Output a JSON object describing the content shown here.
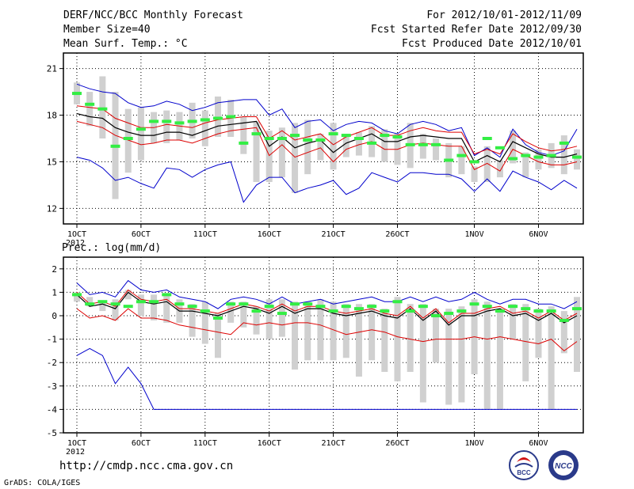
{
  "header": {
    "title": "DERF/NCC/BCC Monthly Forecast",
    "member_size": "Member Size=40",
    "variable": "Mean Surf. Temp.: °C",
    "forecast_period": "For 2012/10/01-2012/11/09",
    "started_date": "Fcst Started Refer Date 2012/09/30",
    "produced_date": "Fcst Produced Date 2012/10/01"
  },
  "footer": {
    "url": "http://cmdp.ncc.cma.gov.cn",
    "grads": "GrADS: COLA/IGES",
    "logo_bcc": "BCC",
    "logo_ncc": "NCC"
  },
  "colors": {
    "box": "#d0d0d0",
    "obs": "#33ee44",
    "mean": "#000000",
    "spread": "#dd0000",
    "extreme": "#0000cc",
    "grid": "#000000"
  },
  "chart_data": [
    {
      "type": "line",
      "title": "Mean Surf. Temp.: °C",
      "days": 40,
      "ylim": [
        11,
        22
      ],
      "yticks": [
        12,
        15,
        18,
        21
      ],
      "xtick_labels": [
        "1OCT\n2012",
        "6OCT",
        "11OCT",
        "16OCT",
        "21OCT",
        "26OCT",
        "1NOV",
        "6NOV"
      ],
      "xtick_days": [
        1,
        6,
        11,
        16,
        21,
        26,
        32,
        37
      ],
      "series": [
        {
          "name": "mean",
          "values": [
            18.1,
            17.9,
            17.8,
            17.2,
            16.9,
            16.7,
            16.7,
            16.9,
            16.9,
            16.7,
            17.0,
            17.3,
            17.4,
            17.5,
            17.6,
            16.0,
            16.6,
            15.9,
            16.2,
            16.4,
            15.6,
            16.2,
            16.5,
            16.8,
            16.3,
            16.3,
            16.6,
            16.7,
            16.6,
            16.5,
            16.5,
            15.0,
            15.4,
            15.0,
            16.3,
            15.9,
            15.5,
            15.3,
            15.3,
            15.5
          ]
        },
        {
          "name": "upper",
          "values": [
            18.6,
            18.5,
            18.4,
            17.8,
            17.5,
            17.2,
            17.2,
            17.4,
            17.3,
            17.2,
            17.5,
            17.7,
            17.8,
            17.9,
            17.9,
            16.5,
            17.0,
            16.4,
            16.6,
            16.8,
            16.1,
            16.6,
            16.9,
            17.2,
            16.7,
            16.7,
            17.0,
            17.2,
            17.0,
            16.9,
            16.9,
            15.5,
            15.8,
            15.5,
            16.8,
            16.3,
            15.9,
            15.7,
            15.8,
            16.0
          ]
        },
        {
          "name": "lower",
          "values": [
            17.6,
            17.4,
            17.2,
            16.7,
            16.4,
            16.1,
            16.2,
            16.4,
            16.4,
            16.2,
            16.5,
            16.8,
            17.0,
            17.1,
            17.2,
            15.4,
            16.1,
            15.3,
            15.6,
            15.9,
            15.0,
            15.8,
            16.1,
            16.3,
            15.8,
            15.8,
            16.1,
            16.2,
            16.1,
            16.0,
            16.0,
            14.5,
            14.9,
            14.4,
            15.8,
            15.4,
            15.0,
            14.8,
            14.8,
            15.0
          ]
        },
        {
          "name": "max",
          "values": [
            20.0,
            19.7,
            19.5,
            19.4,
            18.8,
            18.5,
            18.6,
            18.9,
            18.7,
            18.3,
            18.5,
            18.8,
            18.9,
            19.0,
            19.0,
            18.0,
            18.4,
            17.2,
            17.6,
            17.7,
            17.0,
            17.4,
            17.6,
            17.5,
            17.0,
            16.8,
            17.4,
            17.6,
            17.4,
            17.0,
            17.2,
            15.4,
            15.9,
            15.3,
            17.1,
            16.1,
            15.6,
            15.4,
            15.7,
            17.1
          ]
        },
        {
          "name": "min",
          "values": [
            15.3,
            15.1,
            14.6,
            13.8,
            14.0,
            13.6,
            13.3,
            14.6,
            14.5,
            14.0,
            14.5,
            14.8,
            15.0,
            12.4,
            13.5,
            14.0,
            14.0,
            13.0,
            13.3,
            13.5,
            13.8,
            12.9,
            13.3,
            14.3,
            14.0,
            13.7,
            14.3,
            14.3,
            14.2,
            14.2,
            13.9,
            13.1,
            13.9,
            13.1,
            14.4,
            14.0,
            13.7,
            13.2,
            13.8,
            13.3
          ]
        },
        {
          "name": "obs",
          "values": [
            19.4,
            18.7,
            18.4,
            16.0,
            16.5,
            17.1,
            17.6,
            17.6,
            17.5,
            17.6,
            17.7,
            17.8,
            17.9,
            16.2,
            16.8,
            16.5,
            16.5,
            16.7,
            16.4,
            16.4,
            16.8,
            16.7,
            16.5,
            16.2,
            16.7,
            16.6,
            16.1,
            16.1,
            16.1,
            15.1,
            15.4,
            15.0,
            16.5,
            15.9,
            15.2,
            15.4,
            15.3,
            15.4,
            16.2,
            15.3
          ]
        }
      ],
      "box_low": [
        18.7,
        17.3,
        16.5,
        12.6,
        14.3,
        15.1,
        16.2,
        16.2,
        16.4,
        16.5,
        16.0,
        16.6,
        16.6,
        15.5,
        13.7,
        13.7,
        14.0,
        13.0,
        14.2,
        15.1,
        14.5,
        15.3,
        15.4,
        15.3,
        15.0,
        14.8,
        14.6,
        15.2,
        15.1,
        14.0,
        14.2,
        13.7,
        13.7,
        14.0,
        14.9,
        14.0,
        14.5,
        14.6,
        14.2,
        14.5
      ],
      "box_high": [
        20.1,
        19.5,
        20.5,
        19.5,
        18.4,
        18.5,
        18.2,
        18.3,
        18.2,
        18.8,
        18.3,
        19.2,
        19.0,
        17.9,
        17.6,
        17.0,
        17.2,
        17.5,
        17.7,
        16.8,
        17.5,
        16.8,
        16.9,
        17.3,
        17.1,
        16.8,
        17.5,
        16.8,
        16.5,
        16.2,
        16.0,
        14.7,
        16.0,
        15.1,
        17.0,
        15.6,
        15.8,
        16.2,
        16.7,
        15.8
      ]
    },
    {
      "type": "line",
      "title": "Prec.: log(mm/d)",
      "days": 40,
      "ylim": [
        -5,
        2.5
      ],
      "yticks": [
        -5,
        -4,
        -3,
        -2,
        -1,
        0,
        1,
        2
      ],
      "xtick_labels": [
        "1OCT\n2012",
        "6OCT",
        "11OCT",
        "16OCT",
        "21OCT",
        "26OCT",
        "1NOV",
        "6NOV"
      ],
      "xtick_days": [
        1,
        6,
        11,
        16,
        21,
        26,
        32,
        37
      ],
      "series": [
        {
          "name": "mean",
          "values": [
            0.9,
            0.4,
            0.5,
            0.3,
            1.0,
            0.6,
            0.5,
            0.6,
            0.2,
            0.2,
            0.1,
            0.0,
            0.2,
            0.4,
            0.3,
            0.1,
            0.4,
            0.1,
            0.3,
            0.3,
            0.1,
            0.0,
            0.1,
            0.2,
            0.0,
            -0.1,
            0.3,
            -0.2,
            0.2,
            -0.4,
            0.0,
            0.0,
            0.2,
            0.3,
            0.0,
            0.1,
            -0.2,
            0.1,
            -0.3,
            0.0
          ]
        },
        {
          "name": "upper",
          "values": [
            1.0,
            0.5,
            0.6,
            0.4,
            1.1,
            0.7,
            0.6,
            0.7,
            0.3,
            0.3,
            0.2,
            0.1,
            0.3,
            0.5,
            0.4,
            0.2,
            0.5,
            0.2,
            0.4,
            0.4,
            0.2,
            0.1,
            0.2,
            0.3,
            0.1,
            0.0,
            0.4,
            -0.1,
            0.3,
            -0.3,
            0.1,
            0.1,
            0.3,
            0.4,
            0.1,
            0.2,
            -0.1,
            0.2,
            -0.2,
            0.1
          ]
        },
        {
          "name": "lower",
          "values": [
            0.3,
            -0.1,
            0.0,
            -0.2,
            0.3,
            -0.1,
            -0.1,
            -0.2,
            -0.4,
            -0.5,
            -0.6,
            -0.7,
            -0.8,
            -0.3,
            -0.4,
            -0.3,
            -0.4,
            -0.3,
            -0.3,
            -0.4,
            -0.6,
            -0.8,
            -0.7,
            -0.6,
            -0.7,
            -0.9,
            -1.0,
            -1.1,
            -1.0,
            -1.0,
            -1.0,
            -0.9,
            -1.0,
            -0.9,
            -1.0,
            -1.1,
            -1.2,
            -1.0,
            -1.5,
            -1.1
          ]
        },
        {
          "name": "max",
          "values": [
            1.4,
            0.9,
            1.0,
            0.8,
            1.5,
            1.1,
            1.0,
            1.1,
            0.8,
            0.7,
            0.6,
            0.3,
            0.7,
            0.8,
            0.7,
            0.5,
            0.8,
            0.5,
            0.6,
            0.7,
            0.5,
            0.6,
            0.7,
            0.8,
            0.6,
            0.6,
            0.8,
            0.6,
            0.8,
            0.6,
            0.7,
            1.0,
            0.7,
            0.5,
            0.7,
            0.7,
            0.5,
            0.5,
            0.3,
            0.6
          ]
        },
        {
          "name": "min",
          "values": [
            -1.7,
            -1.4,
            -1.7,
            -2.9,
            -2.2,
            -2.9,
            -4.0,
            -4.0,
            -4.0,
            -4.0,
            -4.0,
            -4.0,
            -4.0,
            -4.0,
            -4.0,
            -4.0,
            -4.0,
            -4.0,
            -4.0,
            -4.0,
            -4.0,
            -4.0,
            -4.0,
            -4.0,
            -4.0,
            -4.0,
            -4.0,
            -4.0,
            -4.0,
            -4.0,
            -4.0,
            -4.0,
            -4.0,
            -4.0,
            -4.0,
            -4.0,
            -4.0,
            -4.0,
            -4.0,
            -4.0
          ]
        },
        {
          "name": "obs",
          "values": [
            0.9,
            0.5,
            0.6,
            0.5,
            0.4,
            0.6,
            0.6,
            0.9,
            0.5,
            0.4,
            0.2,
            -0.1,
            0.5,
            0.5,
            0.2,
            0.4,
            0.1,
            0.5,
            0.5,
            0.4,
            0.2,
            0.4,
            0.3,
            0.4,
            0.2,
            0.6,
            0.2,
            0.4,
            0.0,
            0.1,
            0.2,
            0.5,
            0.4,
            0.2,
            0.4,
            0.3,
            0.2,
            0.2,
            -0.2,
            0.3
          ]
        }
      ],
      "box_low": [
        0.6,
        0.4,
        0.2,
        -0.2,
        0.7,
        0.0,
        -0.2,
        -0.3,
        -0.3,
        -0.9,
        -1.2,
        -1.8,
        -0.3,
        -0.5,
        -0.8,
        -1.0,
        -0.9,
        -2.3,
        -1.9,
        -1.9,
        -1.9,
        -1.8,
        -2.6,
        -1.9,
        -2.4,
        -2.8,
        -2.4,
        -3.7,
        -2.0,
        -3.8,
        -3.7,
        -2.5,
        -4.0,
        -4.0,
        -1.0,
        -2.8,
        -1.8,
        -4.0,
        -1.6,
        -2.4
      ],
      "box_high": [
        1.0,
        0.8,
        0.6,
        0.7,
        1.1,
        0.9,
        0.9,
        0.9,
        0.7,
        0.5,
        0.6,
        0.1,
        0.6,
        0.6,
        0.4,
        0.7,
        0.7,
        0.6,
        0.6,
        0.7,
        0.6,
        0.5,
        0.5,
        0.5,
        0.3,
        0.8,
        0.5,
        0.5,
        0.3,
        0.3,
        0.4,
        0.7,
        0.6,
        0.3,
        0.5,
        0.5,
        0.3,
        0.4,
        0.2,
        0.8
      ]
    }
  ]
}
